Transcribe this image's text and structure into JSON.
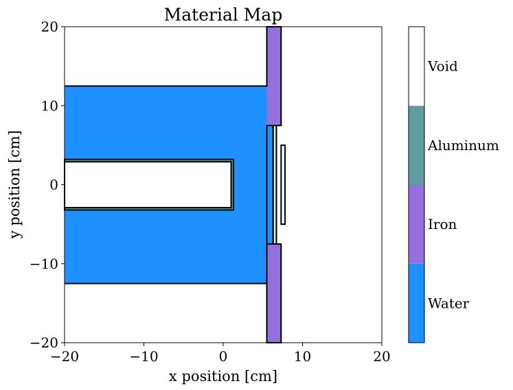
{
  "chart_data": {
    "type": "heatmap",
    "title": "Material Map",
    "xlabel": "x position [cm]",
    "ylabel": "y position [cm]",
    "xlim": [
      -20,
      20
    ],
    "ylim": [
      -20,
      20
    ],
    "xticks": [
      -20,
      -10,
      0,
      10,
      20
    ],
    "yticks": [
      -20,
      -10,
      0,
      10,
      20
    ],
    "xtick_labels": [
      "−20",
      "−10",
      "0",
      "10",
      "20"
    ],
    "ytick_labels": [
      "−20",
      "−10",
      "0",
      "10",
      "20"
    ],
    "grid": false,
    "background_material": "Void",
    "materials": [
      {
        "name": "Water",
        "color": "#1e90ff"
      },
      {
        "name": "Iron",
        "color": "#9370db"
      },
      {
        "name": "Aluminum",
        "color": "#5f9ea0"
      },
      {
        "name": "Void",
        "color": "#ffffff"
      }
    ],
    "regions": [
      {
        "material": "Water",
        "x": [
          -20,
          5.5
        ],
        "y": [
          -12.5,
          12.5
        ]
      },
      {
        "material": "Water",
        "x": [
          5.5,
          6.3
        ],
        "y": [
          -7.5,
          7.5
        ]
      },
      {
        "material": "Iron",
        "x": [
          5.5,
          7.3
        ],
        "y": [
          7.5,
          20
        ]
      },
      {
        "material": "Iron",
        "x": [
          5.5,
          7.3
        ],
        "y": [
          -20,
          -7.5
        ]
      },
      {
        "material": "Aluminum",
        "x": [
          -20,
          1.3
        ],
        "y": [
          -3.2,
          3.2
        ]
      },
      {
        "material": "Void",
        "x": [
          -20,
          1.0
        ],
        "y": [
          -2.9,
          2.9
        ]
      }
    ],
    "outlines": [
      {
        "x": [
          -20,
          1.3
        ],
        "y": [
          -3.2,
          3.2
        ]
      },
      {
        "x": [
          -20,
          1.0
        ],
        "y": [
          -2.9,
          2.9
        ]
      },
      {
        "x": [
          7.3,
          7.8
        ],
        "y": [
          -5,
          5
        ]
      },
      {
        "x": [
          6.3,
          6.7
        ],
        "y": [
          -7.5,
          7.5
        ]
      }
    ],
    "outline_paths": [
      [
        [
          -20,
          12.5
        ],
        [
          5.5,
          12.5
        ],
        [
          5.5,
          20
        ],
        [
          7.3,
          20
        ],
        [
          7.3,
          7.5
        ],
        [
          6.7,
          7.5
        ],
        [
          6.7,
          -7.5
        ],
        [
          7.3,
          -7.5
        ],
        [
          7.3,
          -20
        ],
        [
          5.5,
          -20
        ],
        [
          5.5,
          -7.5
        ],
        [
          6.3,
          -7.5
        ],
        [
          6.3,
          7.5
        ],
        [
          5.5,
          7.5
        ],
        [
          5.5,
          -12.5
        ],
        [
          -20,
          -12.5
        ]
      ]
    ]
  }
}
